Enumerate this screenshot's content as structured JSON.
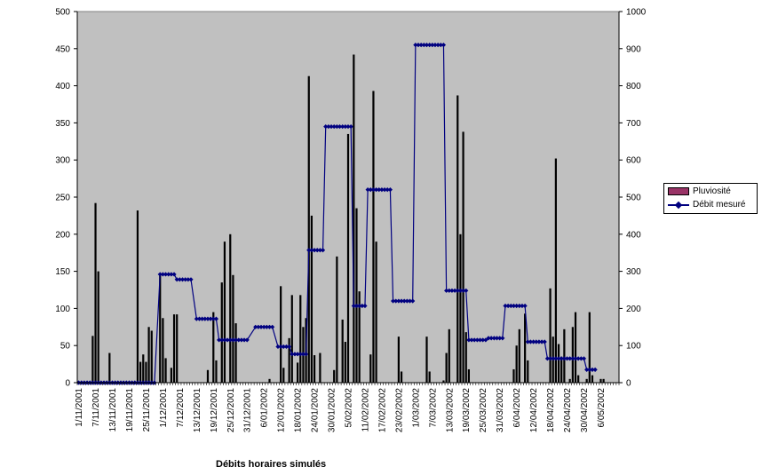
{
  "chart_data": {
    "type": "bar+line",
    "xlabel": "Débits horaires simulés",
    "y_left": {
      "min": 0,
      "max": 500,
      "step": 50
    },
    "y_right": {
      "min": 0,
      "max": 1000,
      "step": 100
    },
    "x_ticks": [
      "1/11/2001",
      "7/11/2001",
      "13/11/2001",
      "19/11/2001",
      "25/11/2001",
      "1/12/2001",
      "7/12/2001",
      "13/12/2001",
      "19/12/2001",
      "25/12/2001",
      "31/12/2001",
      "6/01/2002",
      "12/01/2002",
      "18/01/2002",
      "24/01/2002",
      "30/01/2002",
      "5/02/2002",
      "11/02/2002",
      "17/02/2002",
      "23/02/2002",
      "1/03/2002",
      "7/03/2002",
      "13/03/2002",
      "19/03/2002",
      "25/03/2002",
      "31/03/2002",
      "6/04/2002",
      "12/04/2002",
      "18/04/2002",
      "24/04/2002",
      "30/04/2002",
      "6/05/2002"
    ],
    "n_days": 193,
    "series": [
      {
        "name": "Pluviosité",
        "axis": "left",
        "kind": "bar",
        "color": "#993366",
        "points": [
          [
            5,
            63
          ],
          [
            6,
            242
          ],
          [
            7,
            150
          ],
          [
            11,
            40
          ],
          [
            21,
            232
          ],
          [
            22,
            28
          ],
          [
            23,
            38
          ],
          [
            24,
            28
          ],
          [
            25,
            75
          ],
          [
            26,
            70
          ],
          [
            29,
            145
          ],
          [
            30,
            87
          ],
          [
            31,
            33
          ],
          [
            33,
            20
          ],
          [
            34,
            92
          ],
          [
            35,
            92
          ],
          [
            46,
            17
          ],
          [
            48,
            95
          ],
          [
            49,
            30
          ],
          [
            51,
            135
          ],
          [
            52,
            190
          ],
          [
            54,
            200
          ],
          [
            55,
            145
          ],
          [
            56,
            80
          ],
          [
            68,
            5
          ],
          [
            72,
            130
          ],
          [
            73,
            20
          ],
          [
            75,
            60
          ],
          [
            76,
            118
          ],
          [
            78,
            27
          ],
          [
            79,
            118
          ],
          [
            80,
            75
          ],
          [
            81,
            87
          ],
          [
            82,
            413
          ],
          [
            83,
            225
          ],
          [
            84,
            37
          ],
          [
            86,
            40
          ],
          [
            91,
            17
          ],
          [
            92,
            170
          ],
          [
            94,
            85
          ],
          [
            95,
            55
          ],
          [
            96,
            335
          ],
          [
            98,
            442
          ],
          [
            99,
            235
          ],
          [
            100,
            123
          ],
          [
            104,
            38
          ],
          [
            105,
            393
          ],
          [
            106,
            190
          ],
          [
            114,
            62
          ],
          [
            115,
            15
          ],
          [
            124,
            62
          ],
          [
            125,
            15
          ],
          [
            130,
            3
          ],
          [
            131,
            40
          ],
          [
            132,
            72
          ],
          [
            135,
            387
          ],
          [
            136,
            200
          ],
          [
            137,
            338
          ],
          [
            138,
            68
          ],
          [
            139,
            18
          ],
          [
            155,
            18
          ],
          [
            156,
            50
          ],
          [
            157,
            72
          ],
          [
            159,
            93
          ],
          [
            160,
            30
          ],
          [
            168,
            127
          ],
          [
            169,
            62
          ],
          [
            170,
            302
          ],
          [
            171,
            52
          ],
          [
            172,
            35
          ],
          [
            173,
            72
          ],
          [
            175,
            5
          ],
          [
            176,
            75
          ],
          [
            177,
            95
          ],
          [
            178,
            10
          ],
          [
            181,
            5
          ],
          [
            182,
            95
          ],
          [
            183,
            10
          ],
          [
            186,
            5
          ],
          [
            187,
            5
          ]
        ]
      },
      {
        "name": "Débit mesuré",
        "axis": "right",
        "kind": "line",
        "color": "#000080",
        "segments": [
          [
            0,
            27,
            0
          ],
          [
            29,
            34,
            292
          ],
          [
            35,
            40,
            278
          ],
          [
            42,
            49,
            172
          ],
          [
            50,
            60,
            115
          ],
          [
            63,
            69,
            150
          ],
          [
            71,
            75,
            97
          ],
          [
            76,
            81,
            77
          ],
          [
            82,
            87,
            357
          ],
          [
            88,
            97,
            690
          ],
          [
            98,
            102,
            207
          ],
          [
            103,
            111,
            520
          ],
          [
            112,
            119,
            220
          ],
          [
            120,
            130,
            910
          ],
          [
            131,
            138,
            248
          ],
          [
            139,
            145,
            115
          ],
          [
            146,
            151,
            120
          ],
          [
            152,
            159,
            207
          ],
          [
            160,
            166,
            110
          ],
          [
            167,
            180,
            65
          ],
          [
            181,
            184,
            35
          ]
        ]
      }
    ],
    "legend": {
      "position": "right"
    }
  }
}
